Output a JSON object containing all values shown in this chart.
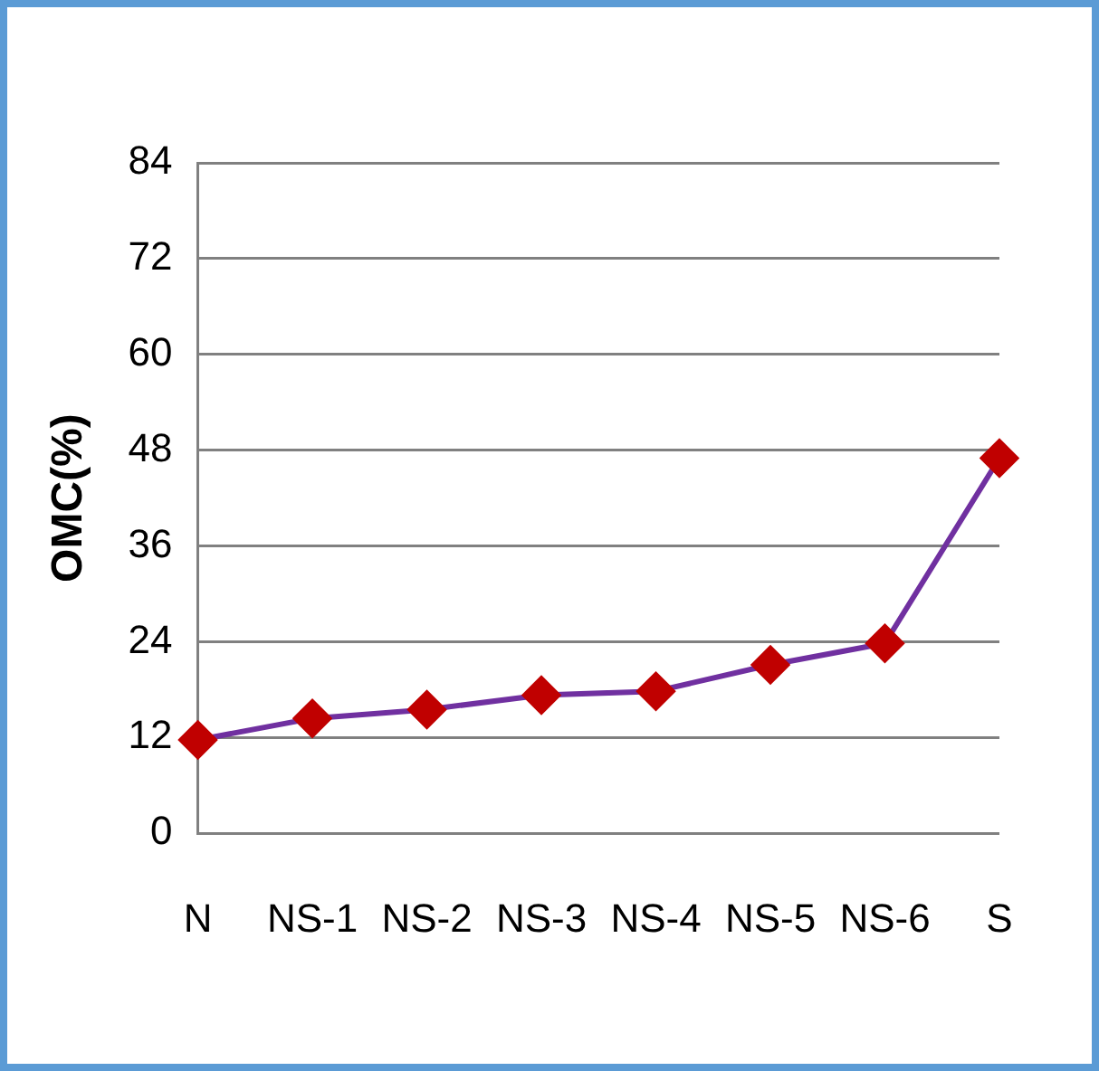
{
  "chart_data": {
    "type": "line",
    "ylabel": "OMC(%)",
    "categories": [
      "N",
      "NS-1",
      "NS-2",
      "NS-3",
      "NS-4",
      "NS-5",
      "NS-6",
      "S"
    ],
    "series": [
      {
        "color": "#7030a0",
        "values": [
          11.7,
          14.4,
          15.5,
          17.3,
          17.8,
          21.1,
          23.8,
          47
        ]
      }
    ],
    "ylim": [
      0,
      84
    ],
    "yticks": [
      0,
      12,
      24,
      36,
      48,
      60,
      72,
      84
    ],
    "grid": "y",
    "legend": false,
    "marker": "diamond",
    "line_style": "solid"
  }
}
